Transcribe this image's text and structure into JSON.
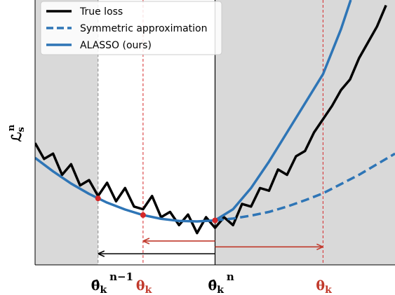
{
  "chart_data": {
    "type": "line",
    "xlim": [
      0,
      10
    ],
    "ylim": [
      0,
      10
    ],
    "ylabel": {
      "base": "ℒ",
      "sub": "s",
      "sup": "n"
    },
    "shaded": [
      [
        0,
        1.75
      ],
      [
        5,
        10
      ]
    ],
    "shade_color": "#d9d9d9",
    "series": [
      {
        "name": "True loss",
        "color": "#000000",
        "dash": false,
        "x": [
          0,
          0.25,
          0.5,
          0.75,
          1,
          1.25,
          1.5,
          1.75,
          2,
          2.25,
          2.5,
          2.75,
          3,
          3.25,
          3.5,
          3.75,
          4,
          4.25,
          4.5,
          4.75,
          5,
          5.25,
          5.5,
          5.75,
          6,
          6.25,
          6.5,
          6.75,
          7,
          7.25,
          7.5,
          7.75,
          8,
          8.25,
          8.5,
          8.75,
          9,
          9.25,
          9.5,
          9.75
        ],
        "values": [
          4.6,
          4.0,
          4.2,
          3.4,
          3.8,
          3.0,
          3.2,
          2.6,
          3.1,
          2.4,
          2.9,
          2.2,
          2.1,
          2.6,
          1.8,
          2.0,
          1.5,
          1.9,
          1.2,
          1.8,
          1.4,
          1.8,
          1.5,
          2.3,
          2.2,
          2.9,
          2.8,
          3.6,
          3.4,
          4.1,
          4.3,
          5.0,
          5.5,
          6.0,
          6.6,
          7.0,
          7.8,
          8.4,
          9.0,
          9.8
        ]
      },
      {
        "name": "Symmetric approximation",
        "color": "#2e75b6",
        "dash": true,
        "x": [
          5,
          5.5,
          6,
          6.5,
          7,
          7.5,
          8,
          8.5,
          9,
          9.5,
          10
        ],
        "values": [
          1.68,
          1.75,
          1.86,
          2.0,
          2.2,
          2.44,
          2.7,
          3.05,
          3.4,
          3.8,
          4.2
        ]
      },
      {
        "name": "ALASSO (ours)",
        "color": "#2e75b6",
        "dash": false,
        "x": [
          0,
          0.5,
          1,
          1.5,
          2,
          2.5,
          3,
          3.5,
          4,
          4.5,
          5,
          5.5,
          6,
          6.5,
          7,
          7.5,
          8,
          8.5,
          8.77
        ],
        "values": [
          4.04,
          3.53,
          3.07,
          2.68,
          2.35,
          2.09,
          1.88,
          1.74,
          1.66,
          1.64,
          1.68,
          2.1,
          2.9,
          3.9,
          5.0,
          6.1,
          7.2,
          8.9,
          10
        ]
      }
    ],
    "vlines": [
      {
        "x": 1.75,
        "color": "#888888",
        "style": "dashed",
        "point": 2.51,
        "label": {
          "base": "θ̂",
          "sub": "k",
          "sup": "n−1"
        }
      },
      {
        "x": 3,
        "color": "#d62728",
        "style": "dashed",
        "point": 1.88,
        "label": {
          "base": "θ",
          "sub": "k"
        }
      },
      {
        "x": 5,
        "color": "#000000",
        "style": "solid",
        "point": 1.68,
        "label": {
          "base": "θ̂",
          "sub": "k",
          "sup": "n"
        }
      },
      {
        "x": 8,
        "color": "#d62728",
        "style": "dashed",
        "label": {
          "base": "θ",
          "sub": "k"
        }
      }
    ],
    "arrows": [
      {
        "from": 5,
        "to": 1.75,
        "y": 0.42,
        "color": "#000000"
      },
      {
        "from": 5,
        "to": 3,
        "y": 0.9,
        "color": "#c0392b"
      },
      {
        "from": 5,
        "to": 8,
        "y": 0.68,
        "color": "#c0392b"
      }
    ]
  }
}
